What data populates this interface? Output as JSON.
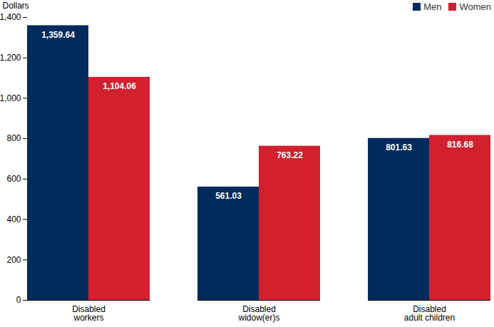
{
  "chart_data": {
    "type": "bar",
    "y_label": "Dollars",
    "categories": [
      "Disabled\nworkers",
      "Disabled\nwidow(er)s",
      "Disabled\nadult children"
    ],
    "series": [
      {
        "name": "Men",
        "color": "#002b5c",
        "values": [
          1359.64,
          561.03,
          801.63
        ],
        "value_labels": [
          "1,359.64",
          "561.03",
          "801.63"
        ]
      },
      {
        "name": "Women",
        "color": "#d2202f",
        "values": [
          1104.06,
          763.22,
          816.68
        ],
        "value_labels": [
          "1,104.06",
          "763.22",
          "816.68"
        ]
      }
    ],
    "ylim": [
      0,
      1400
    ],
    "yticks": [
      0,
      200,
      400,
      600,
      800,
      {
        "value": 1000,
        "label": "1,000"
      },
      {
        "value": 1200,
        "label": "1,200"
      },
      {
        "value": 1400,
        "label": "1,400"
      }
    ],
    "grid": false,
    "legend": "top-right",
    "data_labels": true
  }
}
